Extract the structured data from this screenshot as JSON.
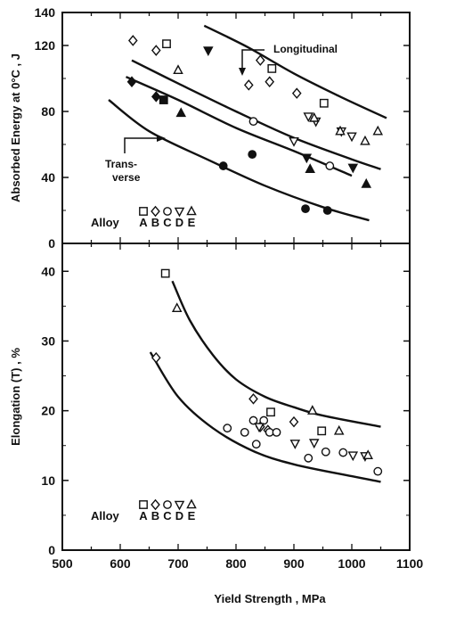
{
  "chart_data": [
    {
      "type": "scatter",
      "xlabel": "",
      "ylabel": "Absorbed Energy at 0°C , J",
      "xlim": [
        500,
        1100
      ],
      "ylim": [
        0,
        140
      ],
      "yticks": [
        "0",
        "40",
        "80",
        "120"
      ],
      "top_tick_label": "140",
      "annotations": {
        "longitudinal": "Longitudinal",
        "transverse_1": "Trans-",
        "transverse_2": "verse"
      },
      "legend": {
        "label": "Alloy",
        "keys": [
          "A",
          "B",
          "C",
          "D",
          "E"
        ]
      },
      "series": [
        {
          "key": "A",
          "marker": "square",
          "open": [
            [
              680,
              121
            ],
            [
              862,
              106
            ],
            [
              952,
              85
            ]
          ],
          "filled": [
            [
              675,
              87
            ]
          ]
        },
        {
          "key": "B",
          "marker": "diamond",
          "open": [
            [
              622,
              123
            ],
            [
              662,
              117
            ],
            [
              822,
              96
            ],
            [
              842,
              111
            ],
            [
              858,
              98
            ],
            [
              905,
              91
            ]
          ],
          "filled": [
            [
              620,
              98
            ],
            [
              662,
              89
            ]
          ]
        },
        {
          "key": "C",
          "marker": "circle",
          "open": [
            [
              830,
              74
            ],
            [
              962,
              47
            ]
          ],
          "filled": [
            [
              778,
              47
            ],
            [
              828,
              54
            ],
            [
              920,
              21
            ],
            [
              958,
              20
            ]
          ]
        },
        {
          "key": "D",
          "marker": "triangle-down",
          "open": [
            [
              900,
              62
            ],
            [
              925,
              77
            ],
            [
              938,
              74
            ],
            [
              982,
              68
            ],
            [
              1000,
              65
            ]
          ],
          "filled": [
            [
              752,
              117
            ],
            [
              922,
              52
            ],
            [
              1002,
              46
            ]
          ]
        },
        {
          "key": "E",
          "marker": "triangle-up",
          "open": [
            [
              700,
              105
            ],
            [
              935,
              76
            ],
            [
              980,
              68
            ],
            [
              1023,
              62
            ],
            [
              1045,
              68
            ]
          ],
          "filled": [
            [
              705,
              79
            ],
            [
              928,
              45
            ],
            [
              1025,
              36
            ]
          ]
        }
      ],
      "curves": [
        {
          "name": "Longitudinal",
          "points": [
            [
              745,
              132
            ],
            [
              820,
              119
            ],
            [
              900,
              103
            ],
            [
              980,
              89
            ],
            [
              1060,
              76
            ]
          ]
        },
        {
          "name": "",
          "points": [
            [
              620,
              111
            ],
            [
              700,
              97
            ],
            [
              800,
              80
            ],
            [
              900,
              64
            ],
            [
              1000,
              51
            ],
            [
              1050,
              45
            ]
          ]
        },
        {
          "name": "",
          "points": [
            [
              610,
              101
            ],
            [
              700,
              87
            ],
            [
              800,
              70
            ],
            [
              900,
              56
            ],
            [
              1000,
              41
            ]
          ]
        },
        {
          "name": "Transverse",
          "points": [
            [
              580,
              87
            ],
            [
              650,
              68
            ],
            [
              750,
              51
            ],
            [
              850,
              35
            ],
            [
              950,
              22
            ],
            [
              1030,
              14
            ]
          ]
        }
      ]
    },
    {
      "type": "scatter",
      "xlabel": "Yield Strength , MPa",
      "ylabel": "Elongation (T) , %",
      "xlim": [
        500,
        1100
      ],
      "ylim": [
        0,
        44
      ],
      "xticks": [
        "500",
        "600",
        "700",
        "800",
        "900",
        "1000",
        "1100"
      ],
      "yticks": [
        "0",
        "10",
        "20",
        "30",
        "40"
      ],
      "legend": {
        "label": "Alloy",
        "keys": [
          "A",
          "B",
          "C",
          "D",
          "E"
        ]
      },
      "series": [
        {
          "key": "A",
          "marker": "square",
          "open": [
            [
              678,
              39.7
            ],
            [
              860,
              19.8
            ],
            [
              948,
              17.1
            ]
          ],
          "filled": []
        },
        {
          "key": "B",
          "marker": "diamond",
          "open": [
            [
              662,
              27.6
            ],
            [
              830,
              21.7
            ],
            [
              842,
              17.7
            ],
            [
              855,
              17.2
            ],
            [
              900,
              18.4
            ]
          ],
          "filled": []
        },
        {
          "key": "C",
          "marker": "circle",
          "open": [
            [
              785,
              17.5
            ],
            [
              815,
              16.9
            ],
            [
              830,
              18.6
            ],
            [
              835,
              15.2
            ],
            [
              848,
              18.6
            ],
            [
              858,
              16.9
            ],
            [
              870,
              16.9
            ],
            [
              925,
              13.2
            ],
            [
              955,
              14.1
            ],
            [
              985,
              14.0
            ],
            [
              1045,
              11.3
            ]
          ],
          "filled": []
        },
        {
          "key": "D",
          "marker": "triangle-down",
          "open": [
            [
              840,
              17.7
            ],
            [
              902,
              15.3
            ],
            [
              935,
              15.4
            ],
            [
              1002,
              13.6
            ],
            [
              1023,
              13.5
            ]
          ],
          "filled": []
        },
        {
          "key": "E",
          "marker": "triangle-up",
          "open": [
            [
              698,
              34.7
            ],
            [
              932,
              20.0
            ],
            [
              978,
              17.1
            ],
            [
              1028,
              13.6
            ]
          ],
          "filled": []
        }
      ],
      "curves": [
        {
          "name": "",
          "points": [
            [
              690,
              38.6
            ],
            [
              720,
              33.0
            ],
            [
              760,
              28.0
            ],
            [
              800,
              24.5
            ],
            [
              850,
              22.0
            ],
            [
              900,
              20.5
            ],
            [
              950,
              19.3
            ],
            [
              1050,
              17.7
            ]
          ]
        },
        {
          "name": "",
          "points": [
            [
              652,
              28.4
            ],
            [
              700,
              22.0
            ],
            [
              760,
              17.5
            ],
            [
              830,
              14.2
            ],
            [
              900,
              12.3
            ],
            [
              1000,
              10.6
            ],
            [
              1050,
              9.8
            ]
          ]
        }
      ]
    }
  ]
}
